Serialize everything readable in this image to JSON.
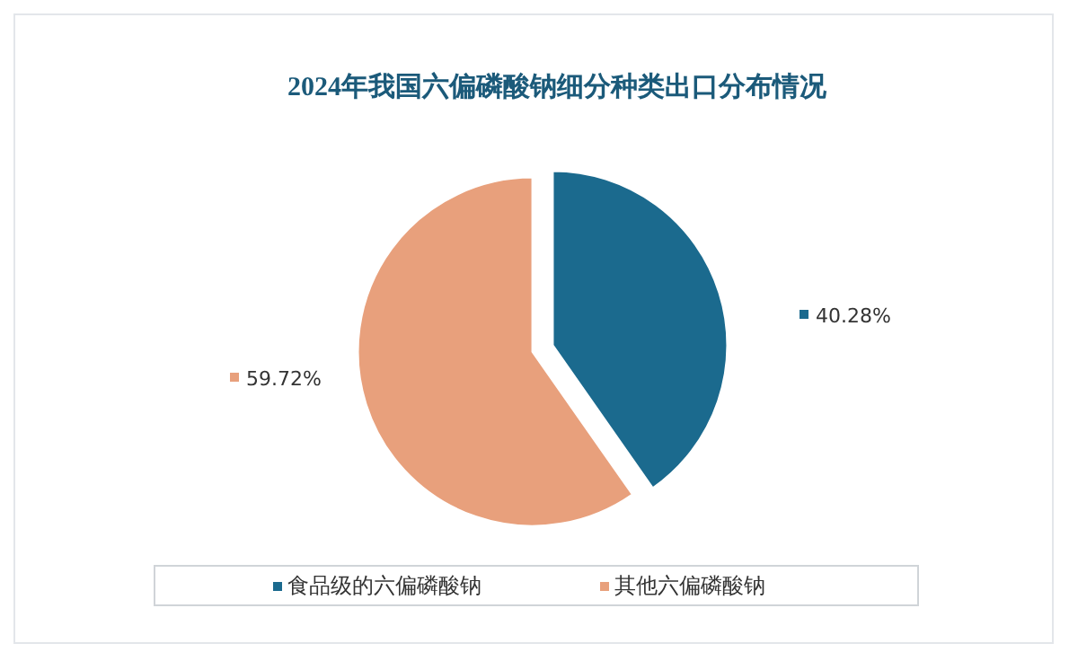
{
  "chart_data": {
    "type": "pie",
    "title": "2024年我国六偏磷酸钠细分种类出口分布情况",
    "categories": [
      "食品级的六偏磷酸钠",
      "其他六偏磷酸钠"
    ],
    "values": [
      40.28,
      59.72
    ],
    "colors": [
      "#1b6a8e",
      "#e8a07c"
    ],
    "value_labels": [
      "40.28%",
      "59.72%"
    ],
    "legend": "bottom"
  }
}
